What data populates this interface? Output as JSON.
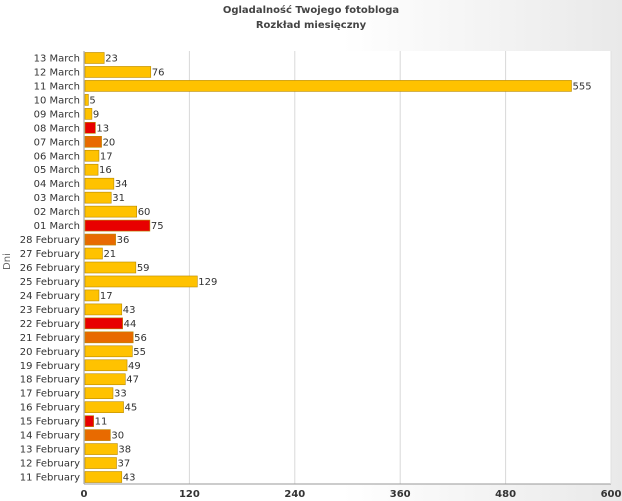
{
  "chart_data": {
    "type": "bar",
    "orientation": "horizontal",
    "title": "Ogladalność Twojego fotobloga",
    "subtitle": "Rozkład miesięczny",
    "ylabel": "Dni",
    "xlim": [
      0,
      600
    ],
    "xticks": [
      "0",
      "120",
      "240",
      "360",
      "480",
      "600"
    ],
    "grid": true,
    "categories": [
      "13 March",
      "12 March",
      "11 March",
      "10 March",
      "09 March",
      "08 March",
      "07 March",
      "06 March",
      "05 March",
      "04 March",
      "03 March",
      "02 March",
      "01 March",
      "28 February",
      "27 February",
      "26 February",
      "25 February",
      "24 February",
      "23 February",
      "22 February",
      "21 February",
      "20 February",
      "19 February",
      "18 February",
      "17 February",
      "16 February",
      "15 February",
      "14 February",
      "13 February",
      "12 February",
      "11 February"
    ],
    "values": [
      23,
      76,
      555,
      5,
      9,
      13,
      20,
      17,
      16,
      34,
      31,
      60,
      75,
      36,
      21,
      59,
      129,
      17,
      43,
      44,
      56,
      55,
      49,
      47,
      33,
      45,
      11,
      30,
      38,
      37,
      43
    ],
    "bar_colors": [
      "#ffc200",
      "#ffc200",
      "#ffc200",
      "#ffc200",
      "#ffc200",
      "#e80000",
      "#e86a00",
      "#ffc200",
      "#ffc200",
      "#ffc200",
      "#ffc200",
      "#ffc200",
      "#e80000",
      "#e86a00",
      "#ffc200",
      "#ffc200",
      "#ffc200",
      "#ffc200",
      "#ffc200",
      "#e80000",
      "#e86a00",
      "#ffc200",
      "#ffc200",
      "#ffc200",
      "#ffc200",
      "#ffc200",
      "#e80000",
      "#e86a00",
      "#ffc200",
      "#ffc200",
      "#ffc200"
    ]
  }
}
